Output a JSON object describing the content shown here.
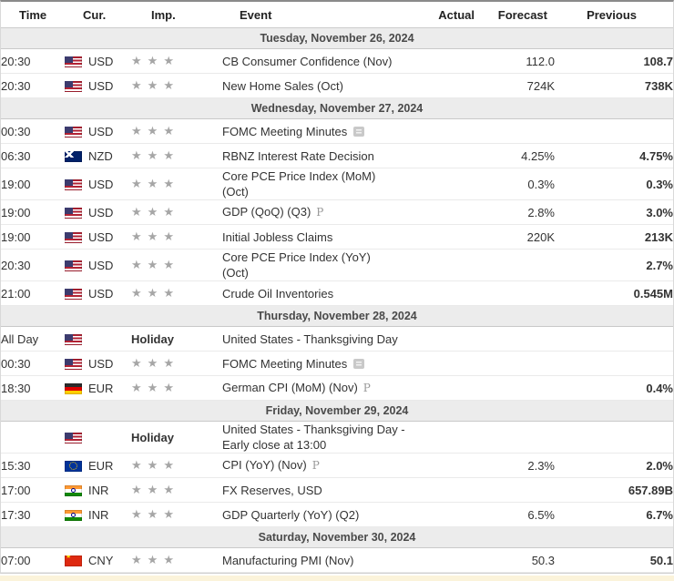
{
  "colors": {
    "star": "#a6a6a6",
    "section_bg": "#ececec",
    "section_border": "#c9c9c9",
    "row_border": "#eaeaea",
    "bottom_strip": "#fbf3da"
  },
  "legend": {
    "preliminary_marker": "P"
  },
  "table": {
    "columns": [
      "Time",
      "Cur.",
      "Imp.",
      "Event",
      "Actual",
      "Forecast",
      "Previous"
    ],
    "sections": [
      {
        "date": "Tuesday, November 26, 2024",
        "rows": [
          {
            "time": "20:30",
            "currency": "USD",
            "flag": "us",
            "stars": 3,
            "event_lines": [
              "CB Consumer Confidence (Nov)"
            ],
            "actual": "",
            "forecast": "112.0",
            "previous": "108.7"
          },
          {
            "time": "20:30",
            "currency": "USD",
            "flag": "us",
            "stars": 3,
            "event_lines": [
              "New Home Sales (Oct)"
            ],
            "actual": "",
            "forecast": "724K",
            "previous": "738K"
          }
        ]
      },
      {
        "date": "Wednesday, November 27, 2024",
        "rows": [
          {
            "time": "00:30",
            "currency": "USD",
            "flag": "us",
            "stars": 3,
            "event_lines": [
              "FOMC Meeting Minutes"
            ],
            "report_icon": true,
            "actual": "",
            "forecast": "",
            "previous": ""
          },
          {
            "time": "06:30",
            "currency": "NZD",
            "flag": "nz",
            "stars": 3,
            "event_lines": [
              "RBNZ Interest Rate Decision"
            ],
            "actual": "",
            "forecast": "4.25%",
            "previous": "4.75%"
          },
          {
            "time": "19:00",
            "currency": "USD",
            "flag": "us",
            "stars": 3,
            "event_lines": [
              "Core PCE Price Index (MoM)",
              "(Oct)"
            ],
            "actual": "",
            "forecast": "0.3%",
            "previous": "0.3%"
          },
          {
            "time": "19:00",
            "currency": "USD",
            "flag": "us",
            "stars": 3,
            "event_lines": [
              "GDP (QoQ) (Q3)"
            ],
            "preliminary": true,
            "actual": "",
            "forecast": "2.8%",
            "previous": "3.0%"
          },
          {
            "time": "19:00",
            "currency": "USD",
            "flag": "us",
            "stars": 3,
            "event_lines": [
              "Initial Jobless Claims"
            ],
            "actual": "",
            "forecast": "220K",
            "previous": "213K"
          },
          {
            "time": "20:30",
            "currency": "USD",
            "flag": "us",
            "stars": 3,
            "event_lines": [
              "Core PCE Price Index (YoY)",
              "(Oct)"
            ],
            "actual": "",
            "forecast": "",
            "previous": "2.7%"
          },
          {
            "time": "21:00",
            "currency": "USD",
            "flag": "us",
            "stars": 3,
            "event_lines": [
              "Crude Oil Inventories"
            ],
            "actual": "",
            "forecast": "",
            "previous": "0.545M"
          }
        ]
      },
      {
        "date": "Thursday, November 28, 2024",
        "rows": [
          {
            "time": "All Day",
            "currency": "",
            "flag": "us",
            "holiday": "Holiday",
            "event_lines": [
              "United States - Thanksgiving Day"
            ],
            "actual": "",
            "forecast": "",
            "previous": ""
          },
          {
            "time": "00:30",
            "currency": "USD",
            "flag": "us",
            "stars": 3,
            "event_lines": [
              "FOMC Meeting Minutes"
            ],
            "report_icon": true,
            "actual": "",
            "forecast": "",
            "previous": ""
          },
          {
            "time": "18:30",
            "currency": "EUR",
            "flag": "de",
            "stars": 3,
            "event_lines": [
              "German CPI (MoM) (Nov)"
            ],
            "preliminary": true,
            "actual": "",
            "forecast": "",
            "previous": "0.4%"
          }
        ]
      },
      {
        "date": "Friday, November 29, 2024",
        "rows": [
          {
            "time": "",
            "currency": "",
            "flag": "us",
            "holiday": "Holiday",
            "event_lines": [
              "United States - Thanksgiving Day - Early close at 13:00"
            ],
            "actual": "",
            "forecast": "",
            "previous": ""
          },
          {
            "time": "15:30",
            "currency": "EUR",
            "flag": "eu",
            "stars": 3,
            "event_lines": [
              "CPI (YoY) (Nov)"
            ],
            "preliminary": true,
            "actual": "",
            "forecast": "2.3%",
            "previous": "2.0%"
          },
          {
            "time": "17:00",
            "currency": "INR",
            "flag": "in",
            "stars": 3,
            "event_lines": [
              "FX Reserves, USD"
            ],
            "actual": "",
            "forecast": "",
            "previous": "657.89B"
          },
          {
            "time": "17:30",
            "currency": "INR",
            "flag": "in",
            "stars": 3,
            "event_lines": [
              "GDP Quarterly (YoY) (Q2)"
            ],
            "actual": "",
            "forecast": "6.5%",
            "previous": "6.7%"
          }
        ]
      },
      {
        "date": "Saturday, November 30, 2024",
        "rows": [
          {
            "time": "07:00",
            "currency": "CNY",
            "flag": "cn",
            "stars": 3,
            "event_lines": [
              "Manufacturing PMI (Nov)"
            ],
            "actual": "",
            "forecast": "50.3",
            "previous": "50.1"
          }
        ]
      }
    ]
  }
}
